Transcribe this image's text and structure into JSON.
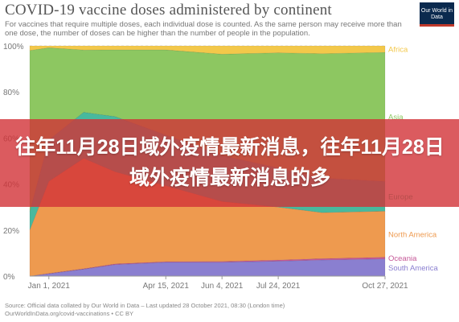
{
  "header": {
    "title": "COVID-19 vaccine doses administered by continent",
    "subtitle": "For vaccines that require multiple doses, each individual dose is counted. As the same person may receive more than one dose, the number of doses can be higher than the number of people in the population.",
    "logo_text": "Our World in Data"
  },
  "overlay": {
    "text": "往年11月28日域外疫情最新消息，往年11月28日域外疫情最新消息的多"
  },
  "footer": {
    "source_line": "Source: Official data collated by Our World in Data – Last updated 28 October 2021, 08:30 (London time)",
    "url_line": "OurWorldInData.org/covid-vaccinations • CC BY"
  },
  "colors": {
    "South America": "#8a7fd0",
    "Oceania": "#c55898",
    "North America": "#ee9a4f",
    "Europe": "#48b99d",
    "Asia": "#8dc761",
    "Africa": "#f3c84a",
    "grid": "#dddddd"
  },
  "chart_data": {
    "type": "area",
    "stacked": true,
    "normalized": true,
    "x": [
      "2020-12-15",
      "2021-01-01",
      "2021-02-01",
      "2021-03-01",
      "2021-04-15",
      "2021-06-04",
      "2021-07-24",
      "2021-09-01",
      "2021-10-27"
    ],
    "x_tick_labels": [
      "Jan 1, 2021",
      "Apr 15, 2021",
      "Jun 4, 2021",
      "Jul 24, 2021",
      "Oct 27, 2021"
    ],
    "x_tick_dates": [
      "2021-01-01",
      "2021-04-15",
      "2021-06-04",
      "2021-07-24",
      "2021-10-27"
    ],
    "y_ticks": [
      0,
      20,
      40,
      60,
      80,
      100
    ],
    "y_tick_labels": [
      "0%",
      "20%",
      "40%",
      "60%",
      "80%",
      "100%"
    ],
    "ylim": [
      0,
      100
    ],
    "grid": true,
    "legend": "right",
    "series": [
      {
        "name": "South America",
        "values": [
          0,
          1,
          3,
          5,
          6,
          6,
          6.5,
          7,
          7.5
        ]
      },
      {
        "name": "Oceania",
        "values": [
          0,
          0.2,
          0.2,
          0.3,
          0.3,
          0.4,
          0.5,
          0.6,
          0.7
        ]
      },
      {
        "name": "North America",
        "values": [
          20,
          40,
          48,
          40,
          33,
          26,
          23,
          20,
          20
        ]
      },
      {
        "name": "Europe",
        "values": [
          8,
          18,
          20,
          24,
          22,
          20,
          17,
          15,
          13
        ]
      },
      {
        "name": "Asia",
        "values": [
          70,
          40,
          27,
          29,
          37,
          44,
          50,
          54,
          56
        ]
      },
      {
        "name": "Africa",
        "values": [
          2,
          0.8,
          1.8,
          1.7,
          1.7,
          3.6,
          3,
          3.4,
          2.8
        ]
      }
    ]
  }
}
